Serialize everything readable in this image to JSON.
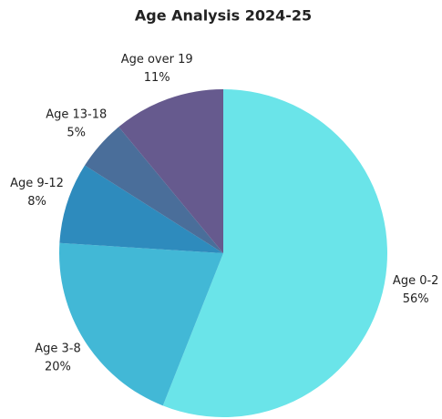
{
  "chart_data": {
    "type": "pie",
    "title": "Age Analysis 2024-25",
    "categories": [
      "Age 0-2",
      "Age 3-8",
      "Age 9-12",
      "Age 13-18",
      "Age over 19"
    ],
    "values": [
      56,
      20,
      8,
      5,
      11
    ],
    "value_labels": [
      "56%",
      "20%",
      "8%",
      "5%",
      "11%"
    ],
    "colors": [
      "#6ae4e9",
      "#42b8d6",
      "#2e8bbd",
      "#4a6e9a",
      "#665a8e"
    ]
  }
}
